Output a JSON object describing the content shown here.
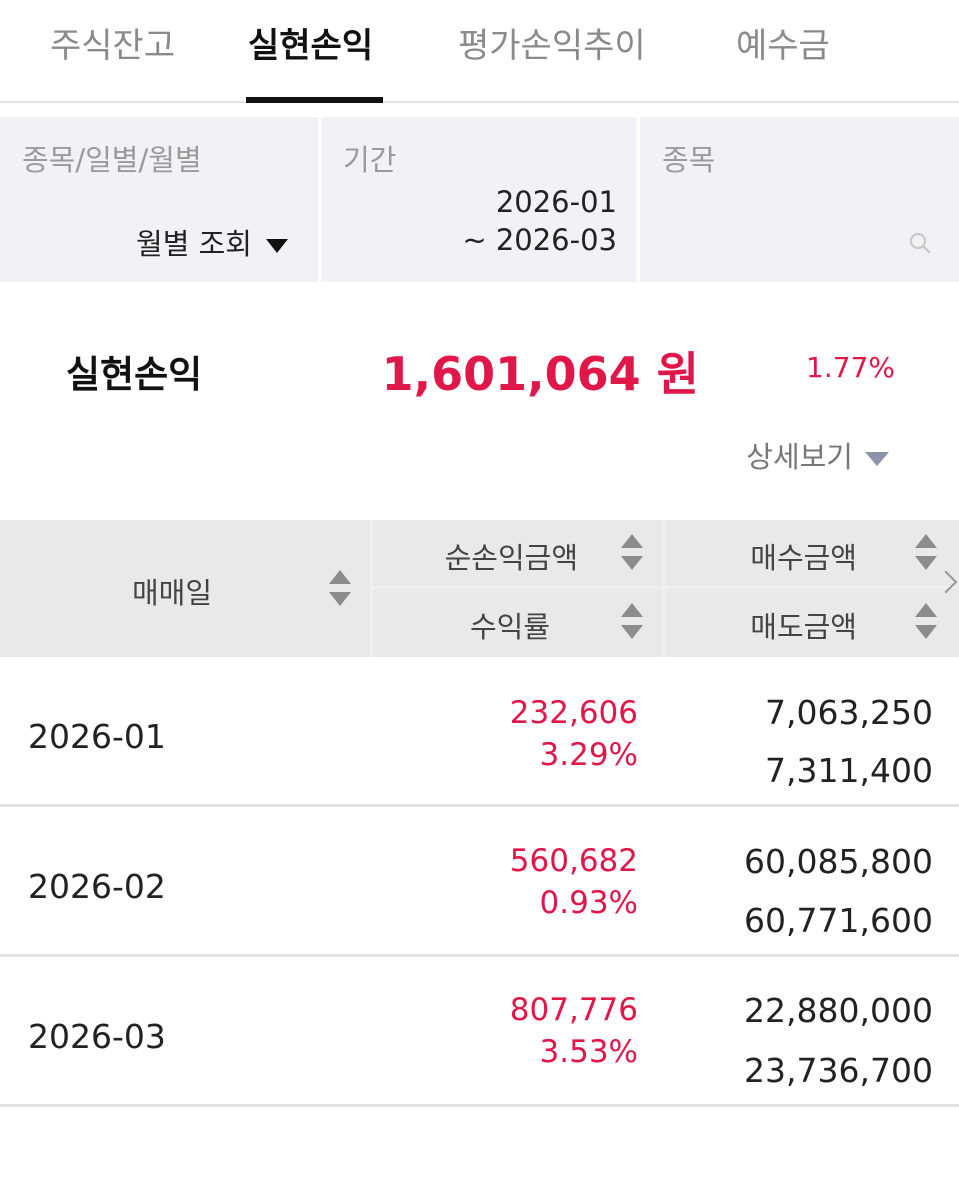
{
  "tabs": [
    {
      "label": "주식잔고",
      "active": false
    },
    {
      "label": "실현손익",
      "active": true
    },
    {
      "label": "평가손익추이",
      "active": false
    },
    {
      "label": "예수금",
      "active": false
    }
  ],
  "filters": {
    "type_label": "종목/일별/월별",
    "type_value": "월별 조회",
    "period_label": "기간",
    "period_from": "2026-01",
    "period_to": "~ 2026-03",
    "stock_label": "종목"
  },
  "summary": {
    "label": "실현손익",
    "amount": "1,601,064 원",
    "rate": "1.77%",
    "detail_label": "상세보기"
  },
  "table": {
    "headers": {
      "date": "매매일",
      "net_profit": "순손익금액",
      "return_rate": "수익률",
      "buy_amount": "매수금액",
      "sell_amount": "매도금액"
    },
    "rows": [
      {
        "date": "2026-01",
        "net_profit": "232,606",
        "return_rate": "3.29%",
        "buy_amount": "7,063,250",
        "sell_amount": "7,311,400"
      },
      {
        "date": "2026-02",
        "net_profit": "560,682",
        "return_rate": "0.93%",
        "buy_amount": "60,085,800",
        "sell_amount": "60,771,600"
      },
      {
        "date": "2026-03",
        "net_profit": "807,776",
        "return_rate": "3.53%",
        "buy_amount": "22,880,000",
        "sell_amount": "23,736,700"
      }
    ]
  },
  "colors": {
    "profit": "#e0184a",
    "header_bg": "#e9e9ea",
    "filter_bg": "#f1f2f5"
  }
}
